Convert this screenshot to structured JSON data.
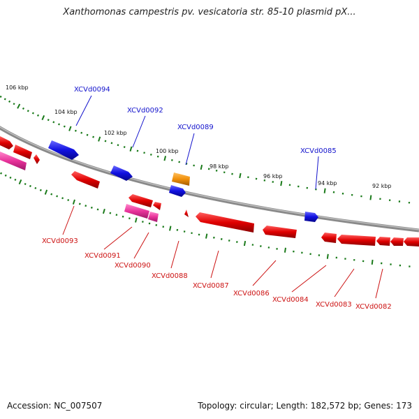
{
  "title": "Xanthomonas campestris pv. vesicatoria str. 85-10 plasmid pX...",
  "footer": {
    "accession": "Accession: NC_007507",
    "summary": "Topology: circular; Length: 182,572 bp; Genes: 173"
  },
  "colors": {
    "forward_gene": "#1010e0",
    "reverse_gene": "#e00000",
    "pink_gene": "#e8329a",
    "orange_gene": "#f0900a",
    "backbone": "#8a8a8a",
    "tick": "#1a7a1a",
    "forward_label": "#1111cc",
    "reverse_label": "#cc1111"
  },
  "tick_labels": [
    "106 kbp",
    "104 kbp",
    "102 kbp",
    "100 kbp",
    "98 kbp",
    "96 kbp",
    "94 kbp",
    "92 kbp"
  ],
  "forward_genes": [
    {
      "label": "XCVd0094"
    },
    {
      "label": "XCVd0092"
    },
    {
      "label": "XCVd0089"
    },
    {
      "label": "XCVd0085"
    }
  ],
  "reverse_genes": [
    {
      "label": "XCVd0093"
    },
    {
      "label": "XCVd0091"
    },
    {
      "label": "XCVd0090"
    },
    {
      "label": "XCVd0088"
    },
    {
      "label": "XCVd0087"
    },
    {
      "label": "XCVd0086"
    },
    {
      "label": "XCVd0084"
    },
    {
      "label": "XCVd0083"
    },
    {
      "label": "XCVd0082"
    }
  ]
}
